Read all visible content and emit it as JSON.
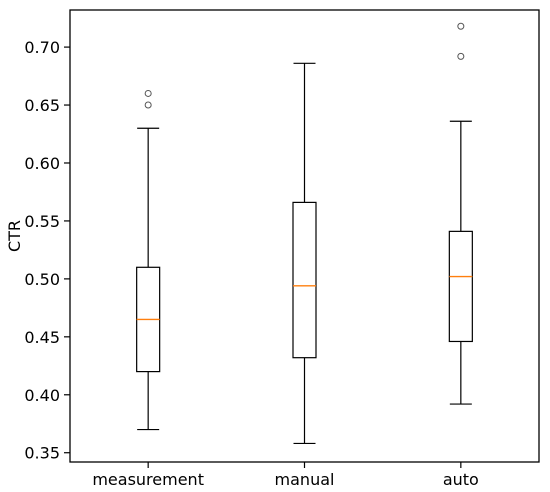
{
  "chart_data": {
    "type": "box",
    "ylabel": "CTR",
    "xlabel": "",
    "title": "",
    "ylim": [
      0.342,
      0.732
    ],
    "yticks": [
      "0.35",
      "0.40",
      "0.45",
      "0.50",
      "0.55",
      "0.60",
      "0.65",
      "0.70"
    ],
    "categories": [
      "measurement",
      "manual",
      "auto"
    ],
    "boxes": [
      {
        "whisker_low": 0.37,
        "q1": 0.42,
        "median": 0.465,
        "q3": 0.51,
        "whisker_high": 0.63,
        "outliers": [
          0.65,
          0.66
        ]
      },
      {
        "whisker_low": 0.358,
        "q1": 0.432,
        "median": 0.494,
        "q3": 0.566,
        "whisker_high": 0.686,
        "outliers": []
      },
      {
        "whisker_low": 0.392,
        "q1": 0.446,
        "median": 0.502,
        "q3": 0.541,
        "whisker_high": 0.636,
        "outliers": [
          0.692,
          0.718
        ]
      }
    ],
    "colors": {
      "box": "#000000",
      "median": "#ff7f0e",
      "outlier": "#555555"
    },
    "grid": false,
    "legend": "none"
  }
}
